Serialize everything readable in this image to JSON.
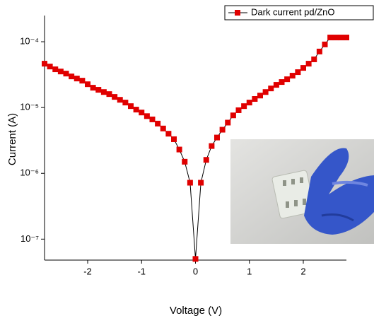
{
  "chart_data": {
    "type": "scatter-line",
    "x_label": "Voltage (V)",
    "y_label": "Current (A)",
    "log_y": true,
    "grid": false,
    "legend": "top-right",
    "xlim": [
      -2.8,
      2.8
    ],
    "xticks": [
      -2,
      -1,
      0,
      1,
      2
    ],
    "ylim": [
      4.8e-08,
      0.00025
    ],
    "yticks": [
      {
        "value": 1e-07,
        "label": "10⁻⁷"
      },
      {
        "value": 1e-06,
        "label": "10⁻⁶"
      },
      {
        "value": 1e-05,
        "label": "10⁻⁵"
      },
      {
        "value": 0.0001,
        "label": "10⁻⁴"
      }
    ],
    "x": [
      -2.8,
      -2.7,
      -2.6,
      -2.5,
      -2.4,
      -2.3,
      -2.2,
      -2.1,
      -2.0,
      -1.9,
      -1.8,
      -1.7,
      -1.6,
      -1.5,
      -1.4,
      -1.3,
      -1.2,
      -1.1,
      -1.0,
      -0.9,
      -0.8,
      -0.7,
      -0.6,
      -0.5,
      -0.4,
      -0.3,
      -0.2,
      -0.1,
      0,
      0.1,
      0.2,
      0.3,
      0.4,
      0.5,
      0.6,
      0.7,
      0.8,
      0.9,
      1.0,
      1.1,
      1.2,
      1.3,
      1.4,
      1.5,
      1.6,
      1.7,
      1.8,
      1.9,
      2.0,
      2.1,
      2.2,
      2.3,
      2.4,
      2.5,
      2.6,
      2.7,
      2.8
    ],
    "series": [
      {
        "name": "Dark current pd/ZnO",
        "color": "#e00000",
        "line_color": "#000000",
        "values": [
          4.64e-05,
          4.2e-05,
          3.81e-05,
          3.53e-05,
          3.28e-05,
          2.97e-05,
          2.76e-05,
          2.56e-05,
          2.26e-05,
          2e-05,
          1.86e-05,
          1.72e-05,
          1.6e-05,
          1.45e-05,
          1.31e-05,
          1.19e-05,
          1.05e-05,
          9.3e-06,
          8.4e-06,
          7.4e-06,
          6.6e-06,
          5.7e-06,
          4.8e-06,
          4e-06,
          3.3e-06,
          2.3e-06,
          1.5e-06,
          7.2e-07,
          5e-08,
          7.2e-07,
          1.6e-06,
          2.6e-06,
          3.5e-06,
          4.6e-06,
          5.9e-06,
          7.6e-06,
          9.1e-06,
          1.05e-05,
          1.19e-05,
          1.35e-05,
          1.52e-05,
          1.72e-05,
          1.95e-05,
          2.21e-05,
          2.44e-05,
          2.69e-05,
          3.05e-05,
          3.45e-05,
          4e-05,
          4.64e-05,
          5.4e-05,
          7.1e-05,
          9.1e-05,
          0.000116,
          0.000116,
          0.000116,
          0.000116
        ]
      }
    ]
  }
}
